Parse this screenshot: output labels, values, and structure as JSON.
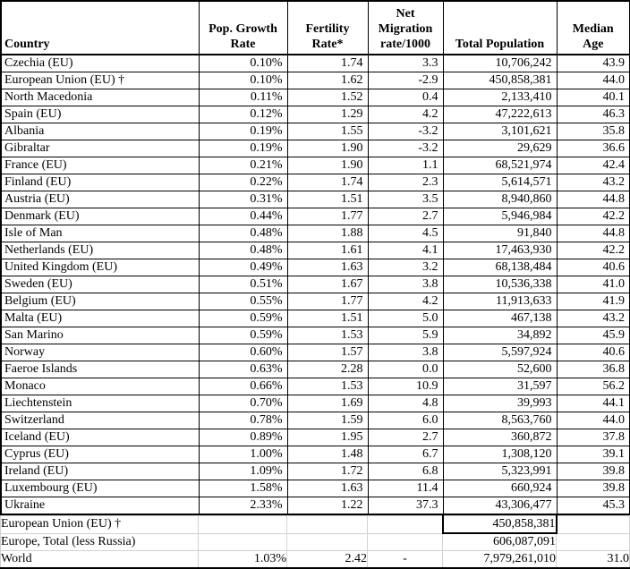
{
  "colors": {
    "table_border": "#000000",
    "gridline": "#d2d2d2",
    "text": "#000000",
    "background": "#ffffff"
  },
  "table": {
    "columns": [
      {
        "id": "country",
        "align": "left",
        "label_lines": [
          "Country"
        ]
      },
      {
        "id": "pop_growth_rate",
        "align": "right",
        "label_lines": [
          "Pop. Growth",
          "Rate"
        ]
      },
      {
        "id": "fertility_rate",
        "align": "right",
        "label_lines": [
          "Fertility",
          "Rate*"
        ]
      },
      {
        "id": "net_migration",
        "align": "right",
        "label_lines": [
          "Net",
          "Migration",
          "rate/1000"
        ]
      },
      {
        "id": "total_population",
        "align": "right",
        "label_lines": [
          "Total Population"
        ]
      },
      {
        "id": "median_age",
        "align": "right",
        "label_lines": [
          "Median",
          "Age"
        ]
      }
    ],
    "rows": [
      {
        "country": "Czechia (EU)",
        "pop_growth_rate": "0.10%",
        "fertility_rate": "1.74",
        "net_migration": "3.3",
        "total_population": "10,706,242",
        "median_age": "43.9"
      },
      {
        "country": "European Union (EU) †",
        "pop_growth_rate": "0.10%",
        "fertility_rate": "1.62",
        "net_migration": "-2.9",
        "total_population": "450,858,381",
        "median_age": "44.0"
      },
      {
        "country": "North Macedonia",
        "pop_growth_rate": "0.11%",
        "fertility_rate": "1.52",
        "net_migration": "0.4",
        "total_population": "2,133,410",
        "median_age": "40.1"
      },
      {
        "country": "Spain (EU)",
        "pop_growth_rate": "0.12%",
        "fertility_rate": "1.29",
        "net_migration": "4.2",
        "total_population": "47,222,613",
        "median_age": "46.3"
      },
      {
        "country": "Albania",
        "pop_growth_rate": "0.19%",
        "fertility_rate": "1.55",
        "net_migration": "-3.2",
        "total_population": "3,101,621",
        "median_age": "35.8"
      },
      {
        "country": "Gibraltar",
        "pop_growth_rate": "0.19%",
        "fertility_rate": "1.90",
        "net_migration": "-3.2",
        "total_population": "29,629",
        "median_age": "36.6"
      },
      {
        "country": "France (EU)",
        "pop_growth_rate": "0.21%",
        "fertility_rate": "1.90",
        "net_migration": "1.1",
        "total_population": "68,521,974",
        "median_age": "42.4"
      },
      {
        "country": "Finland (EU)",
        "pop_growth_rate": "0.22%",
        "fertility_rate": "1.74",
        "net_migration": "2.3",
        "total_population": "5,614,571",
        "median_age": "43.2"
      },
      {
        "country": "Austria (EU)",
        "pop_growth_rate": "0.31%",
        "fertility_rate": "1.51",
        "net_migration": "3.5",
        "total_population": "8,940,860",
        "median_age": "44.8"
      },
      {
        "country": "Denmark (EU)",
        "pop_growth_rate": "0.44%",
        "fertility_rate": "1.77",
        "net_migration": "2.7",
        "total_population": "5,946,984",
        "median_age": "42.2"
      },
      {
        "country": "Isle of Man",
        "pop_growth_rate": "0.48%",
        "fertility_rate": "1.88",
        "net_migration": "4.5",
        "total_population": "91,840",
        "median_age": "44.8"
      },
      {
        "country": "Netherlands (EU)",
        "pop_growth_rate": "0.48%",
        "fertility_rate": "1.61",
        "net_migration": "4.1",
        "total_population": "17,463,930",
        "median_age": "42.2"
      },
      {
        "country": "United Kingdom (EU)",
        "pop_growth_rate": "0.49%",
        "fertility_rate": "1.63",
        "net_migration": "3.2",
        "total_population": "68,138,484",
        "median_age": "40.6"
      },
      {
        "country": "Sweden (EU)",
        "pop_growth_rate": "0.51%",
        "fertility_rate": "1.67",
        "net_migration": "3.8",
        "total_population": "10,536,338",
        "median_age": "41.0"
      },
      {
        "country": "Belgium (EU)",
        "pop_growth_rate": "0.55%",
        "fertility_rate": "1.77",
        "net_migration": "4.2",
        "total_population": "11,913,633",
        "median_age": "41.9"
      },
      {
        "country": "Malta (EU)",
        "pop_growth_rate": "0.59%",
        "fertility_rate": "1.51",
        "net_migration": "5.0",
        "total_population": "467,138",
        "median_age": "43.2"
      },
      {
        "country": "San Marino",
        "pop_growth_rate": "0.59%",
        "fertility_rate": "1.53",
        "net_migration": "5.9",
        "total_population": "34,892",
        "median_age": "45.9"
      },
      {
        "country": "Norway",
        "pop_growth_rate": "0.60%",
        "fertility_rate": "1.57",
        "net_migration": "3.8",
        "total_population": "5,597,924",
        "median_age": "40.6"
      },
      {
        "country": "Faeroe Islands",
        "pop_growth_rate": "0.63%",
        "fertility_rate": "2.28",
        "net_migration": "0.0",
        "total_population": "52,600",
        "median_age": "36.8"
      },
      {
        "country": "Monaco",
        "pop_growth_rate": "0.66%",
        "fertility_rate": "1.53",
        "net_migration": "10.9",
        "total_population": "31,597",
        "median_age": "56.2"
      },
      {
        "country": "Liechtenstein",
        "pop_growth_rate": "0.70%",
        "fertility_rate": "1.69",
        "net_migration": "4.8",
        "total_population": "39,993",
        "median_age": "44.1"
      },
      {
        "country": "Switzerland",
        "pop_growth_rate": "0.78%",
        "fertility_rate": "1.59",
        "net_migration": "6.0",
        "total_population": "8,563,760",
        "median_age": "44.0"
      },
      {
        "country": "Iceland (EU)",
        "pop_growth_rate": "0.89%",
        "fertility_rate": "1.95",
        "net_migration": "2.7",
        "total_population": "360,872",
        "median_age": "37.8"
      },
      {
        "country": "Cyprus (EU)",
        "pop_growth_rate": "1.00%",
        "fertility_rate": "1.48",
        "net_migration": "6.7",
        "total_population": "1,308,120",
        "median_age": "39.1"
      },
      {
        "country": "Ireland (EU)",
        "pop_growth_rate": "1.09%",
        "fertility_rate": "1.72",
        "net_migration": "6.8",
        "total_population": "5,323,991",
        "median_age": "39.8"
      },
      {
        "country": "Luxembourg (EU)",
        "pop_growth_rate": "1.58%",
        "fertility_rate": "1.63",
        "net_migration": "11.4",
        "total_population": "660,924",
        "median_age": "39.8"
      },
      {
        "country": "Ukraine",
        "pop_growth_rate": "2.33%",
        "fertility_rate": "1.22",
        "net_migration": "37.3",
        "total_population": "43,306,477",
        "median_age": "45.3"
      }
    ],
    "footer_rows": [
      {
        "country": "European Union (EU) †",
        "pop_growth_rate": "",
        "fertility_rate": "",
        "net_migration": "",
        "total_population": "450,858,381",
        "median_age": "",
        "boxed_total": true
      },
      {
        "country": "Europe, Total (less Russia)",
        "pop_growth_rate": "",
        "fertility_rate": "",
        "net_migration": "",
        "total_population": "606,087,091",
        "median_age": ""
      },
      {
        "country": "World",
        "pop_growth_rate": "1.03%",
        "fertility_rate": "2.42",
        "net_migration": "-",
        "total_population": "7,979,261,010",
        "median_age": "31.0"
      }
    ]
  }
}
